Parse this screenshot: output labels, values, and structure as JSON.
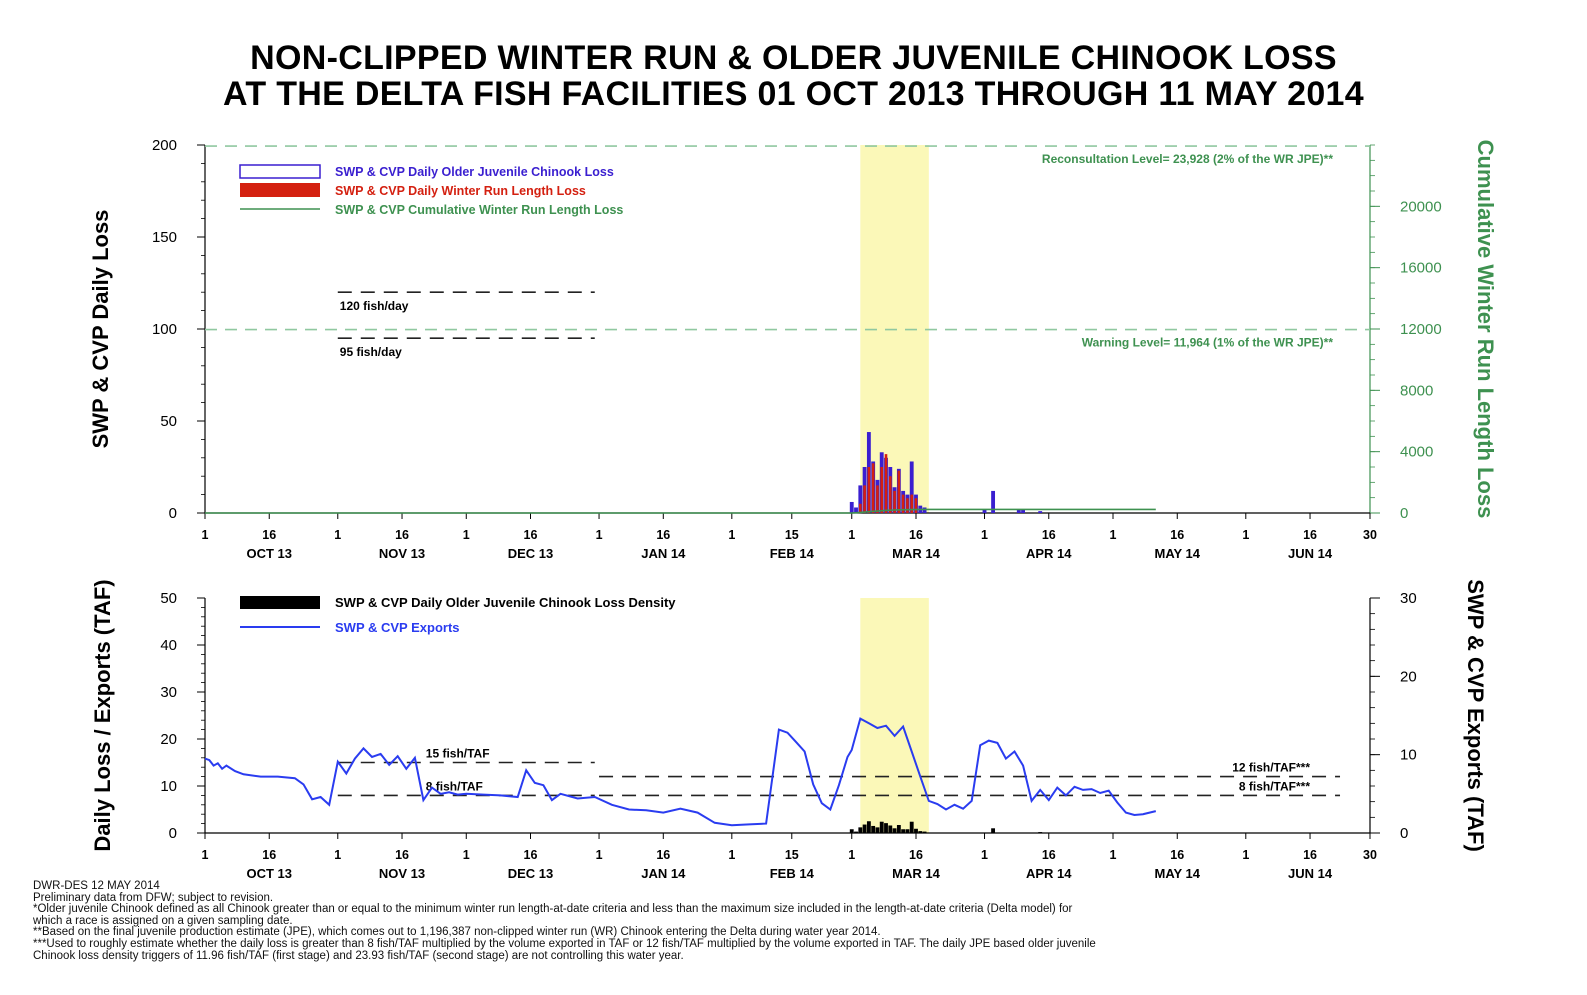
{
  "title": {
    "line1": "NON-CLIPPED WINTER RUN & OLDER JUVENILE CHINOOK LOSS",
    "line2": "AT THE DELTA FISH FACILITIES 01 OCT 2013 THROUGH 11 MAY 2014"
  },
  "colors": {
    "older_juvenile": "#3a1fd0",
    "winter_run": "#d42010",
    "cumulative": "#3e9150",
    "exports": "#2a3cf0",
    "density": "#000000",
    "highlight": "#fbf8b8",
    "reference_dash": "#90c8a0"
  },
  "x_axis": {
    "tick_labels": [
      "1",
      "16",
      "1",
      "16",
      "1",
      "16",
      "1",
      "16",
      "1",
      "15",
      "1",
      "16",
      "1",
      "16",
      "1",
      "16",
      "1",
      "16",
      "30"
    ],
    "month_labels": [
      "OCT 13",
      "NOV 13",
      "DEC 13",
      "JAN 14",
      "FEB 14",
      "MAR 14",
      "APR 14",
      "MAY 14",
      "JUN 14"
    ]
  },
  "chart_data": [
    {
      "type": "bar",
      "panel": "top",
      "xlabel": "",
      "ylabel": "SWP & CVP Daily Loss",
      "y2label": "Cumulative Winter Run Length Loss",
      "x_range": [
        "2013-10-01",
        "2014-06-30"
      ],
      "ylim": [
        0,
        200
      ],
      "y_ticks": [
        0,
        50,
        100,
        150,
        200
      ],
      "y2lim": [
        0,
        24000
      ],
      "y2_ticks": [
        0,
        4000,
        8000,
        12000,
        16000,
        20000
      ],
      "highlight_range": [
        "2014-03-03",
        "2014-03-19"
      ],
      "legend": [
        "SWP & CVP Daily Older Juvenile Chinook Loss",
        "SWP & CVP Daily Winter Run Length Loss",
        "SWP & CVP Cumulative Winter Run Length Loss"
      ],
      "legend_position": "top-left",
      "series": [
        {
          "name": "SWP & CVP Daily Older Juvenile Chinook Loss",
          "x": [
            "2014-03-01",
            "2014-03-02",
            "2014-03-03",
            "2014-03-04",
            "2014-03-05",
            "2014-03-06",
            "2014-03-07",
            "2014-03-08",
            "2014-03-09",
            "2014-03-10",
            "2014-03-11",
            "2014-03-12",
            "2014-03-13",
            "2014-03-14",
            "2014-03-15",
            "2014-03-16",
            "2014-03-17",
            "2014-03-18",
            "2014-04-01",
            "2014-04-03",
            "2014-04-09",
            "2014-04-10",
            "2014-04-14"
          ],
          "values": [
            6,
            3,
            15,
            25,
            44,
            28,
            18,
            33,
            30,
            25,
            14,
            24,
            12,
            10,
            28,
            10,
            4,
            3,
            2,
            12,
            2,
            2,
            1
          ]
        },
        {
          "name": "SWP & CVP Daily Winter Run Length Loss",
          "x": [
            "2014-03-03",
            "2014-03-04",
            "2014-03-05",
            "2014-03-06",
            "2014-03-07",
            "2014-03-08",
            "2014-03-09",
            "2014-03-10",
            "2014-03-11",
            "2014-03-12",
            "2014-03-13",
            "2014-03-14",
            "2014-03-15",
            "2014-03-16"
          ],
          "values": [
            5,
            15,
            25,
            27,
            15,
            25,
            32,
            20,
            12,
            23,
            10,
            8,
            10,
            8
          ]
        },
        {
          "name": "SWP & CVP Cumulative Winter Run Length Loss",
          "x": [
            "2013-10-01",
            "2014-03-01",
            "2014-03-03",
            "2014-03-06",
            "2014-03-09",
            "2014-03-12",
            "2014-03-15",
            "2014-03-18",
            "2014-05-11"
          ],
          "values": [
            0,
            0,
            40,
            110,
            170,
            210,
            225,
            235,
            235
          ]
        }
      ],
      "reference_lines": [
        {
          "label": "Reconsultation Level= 23,928 (2% of the WR JPE)**",
          "value": 23928,
          "axis": "right"
        },
        {
          "label": "Warning Level= 11,964 (1% of the WR JPE)**",
          "value": 11964,
          "axis": "right"
        },
        {
          "label": "120 fish/day",
          "value": 120,
          "axis": "left",
          "x_range": [
            "2013-11-01",
            "2013-12-31"
          ]
        },
        {
          "label": "95 fish/day",
          "value": 95,
          "axis": "left",
          "x_range": [
            "2013-11-01",
            "2013-12-31"
          ]
        }
      ]
    },
    {
      "type": "line",
      "panel": "bottom",
      "xlabel": "",
      "ylabel": "Daily Loss / Exports (TAF)",
      "y2label": "SWP & CVP Exports (TAF)",
      "x_range": [
        "2013-10-01",
        "2014-06-30"
      ],
      "ylim": [
        0,
        50
      ],
      "y_ticks": [
        0,
        10,
        20,
        30,
        40,
        50
      ],
      "y2lim": [
        0,
        30
      ],
      "y2_ticks": [
        0,
        10,
        20,
        30
      ],
      "highlight_range": [
        "2014-03-03",
        "2014-03-19"
      ],
      "legend": [
        "SWP & CVP Daily Older Juvenile Chinook Loss Density",
        "SWP & CVP Exports"
      ],
      "legend_position": "top-left",
      "series": [
        {
          "name": "SWP & CVP Exports",
          "axis": "right",
          "x": [
            "2013-10-01",
            "2013-10-02",
            "2013-10-03",
            "2013-10-04",
            "2013-10-05",
            "2013-10-06",
            "2013-10-08",
            "2013-10-10",
            "2013-10-14",
            "2013-10-18",
            "2013-10-22",
            "2013-10-24",
            "2013-10-26",
            "2013-10-28",
            "2013-10-30",
            "2013-11-01",
            "2013-11-03",
            "2013-11-05",
            "2013-11-07",
            "2013-11-09",
            "2013-11-11",
            "2013-11-13",
            "2013-11-15",
            "2013-11-17",
            "2013-11-19",
            "2013-11-21",
            "2013-11-23",
            "2013-11-25",
            "2013-11-27",
            "2013-11-29",
            "2013-12-01",
            "2013-12-05",
            "2013-12-09",
            "2013-12-13",
            "2013-12-15",
            "2013-12-17",
            "2013-12-19",
            "2013-12-21",
            "2013-12-23",
            "2013-12-27",
            "2013-12-31",
            "2014-01-04",
            "2014-01-08",
            "2014-01-12",
            "2014-01-16",
            "2014-01-20",
            "2014-01-24",
            "2014-01-28",
            "2014-02-01",
            "2014-02-05",
            "2014-02-09",
            "2014-02-12",
            "2014-02-14",
            "2014-02-16",
            "2014-02-18",
            "2014-02-20",
            "2014-02-22",
            "2014-02-24",
            "2014-02-26",
            "2014-02-28",
            "2014-03-01",
            "2014-03-03",
            "2014-03-05",
            "2014-03-07",
            "2014-03-09",
            "2014-03-11",
            "2014-03-13",
            "2014-03-15",
            "2014-03-17",
            "2014-03-19",
            "2014-03-21",
            "2014-03-23",
            "2014-03-25",
            "2014-03-27",
            "2014-03-29",
            "2014-03-31",
            "2014-04-02",
            "2014-04-04",
            "2014-04-06",
            "2014-04-08",
            "2014-04-10",
            "2014-04-12",
            "2014-04-14",
            "2014-04-16",
            "2014-04-18",
            "2014-04-20",
            "2014-04-22",
            "2014-04-24",
            "2014-04-26",
            "2014-04-28",
            "2014-04-30",
            "2014-05-02",
            "2014-05-04",
            "2014-05-06",
            "2014-05-08",
            "2014-05-11"
          ],
          "values": [
            9.5,
            9.3,
            8.6,
            8.9,
            8.2,
            8.6,
            7.9,
            7.5,
            7.2,
            7.2,
            7.0,
            6.2,
            4.3,
            4.6,
            3.6,
            9.1,
            7.6,
            9.5,
            10.8,
            9.7,
            10.1,
            8.7,
            9.8,
            8.2,
            9.6,
            4.2,
            5.8,
            5.0,
            5.2,
            4.9,
            5.0,
            4.9,
            4.8,
            4.6,
            8.0,
            6.4,
            6.1,
            4.2,
            5.0,
            4.4,
            4.6,
            3.6,
            3.0,
            2.9,
            2.6,
            3.1,
            2.6,
            1.3,
            1.0,
            1.1,
            1.2,
            13.2,
            12.8,
            11.6,
            10.4,
            6.2,
            3.8,
            3.0,
            6.1,
            9.7,
            10.6,
            14.6,
            14.0,
            13.4,
            13.7,
            12.4,
            13.6,
            10.4,
            7.2,
            4.1,
            3.7,
            3.0,
            3.6,
            3.1,
            4.1,
            11.2,
            11.8,
            11.5,
            9.5,
            10.4,
            8.6,
            4.1,
            5.5,
            4.2,
            5.8,
            4.8,
            5.9,
            5.5,
            5.6,
            5.1,
            5.4,
            3.9,
            2.6,
            2.3,
            2.4,
            2.8
          ]
        },
        {
          "name": "SWP & CVP Daily Older Juvenile Chinook Loss Density",
          "axis": "left",
          "x": [
            "2014-03-01",
            "2014-03-02",
            "2014-03-03",
            "2014-03-04",
            "2014-03-05",
            "2014-03-06",
            "2014-03-07",
            "2014-03-08",
            "2014-03-09",
            "2014-03-10",
            "2014-03-11",
            "2014-03-12",
            "2014-03-13",
            "2014-03-14",
            "2014-03-15",
            "2014-03-16",
            "2014-03-17",
            "2014-03-18",
            "2014-04-03",
            "2014-04-14"
          ],
          "values": [
            0.8,
            0.3,
            1.2,
            1.8,
            2.5,
            1.5,
            1.2,
            2.4,
            2.1,
            1.6,
            1.0,
            1.7,
            0.8,
            0.8,
            2.4,
            0.9,
            0.4,
            0.3,
            1.0,
            0.2
          ]
        }
      ],
      "reference_lines": [
        {
          "label": "15 fish/TAF",
          "value": 15,
          "x_range": [
            "2013-11-01",
            "2013-12-31"
          ]
        },
        {
          "label": "8 fish/TAF",
          "value": 8,
          "x_range": [
            "2013-11-01",
            "2013-12-31"
          ]
        },
        {
          "label": "12 fish/TAF***",
          "value": 12,
          "x_range": [
            "2014-01-01",
            "2014-06-23"
          ]
        },
        {
          "label": "8 fish/TAF***",
          "value": 8,
          "x_range": [
            "2014-01-01",
            "2014-06-23"
          ]
        }
      ]
    }
  ],
  "footnotes": [
    "DWR-DES 12 MAY 2014",
    "Preliminary data from DFW; subject to revision.",
    "*Older juvenile Chinook defined as all Chinook greater than or equal to the minimum winter run length-at-date criteria and less than the maximum size included in the length-at-date criteria (Delta model) for",
    "which a race is assigned on a given sampling date.",
    "**Based on the final juvenile production estimate (JPE), which comes out to 1,196,387 non-clipped winter run (WR) Chinook entering the Delta during water year 2014.",
    "***Used to roughly estimate whether the daily loss is greater than 8 fish/TAF multiplied by the volume exported in TAF or 12 fish/TAF multiplied by the volume exported in TAF. The daily JPE based older juvenile",
    "Chinook loss density triggers of 11.96 fish/TAF (first stage) and 23.93 fish/TAF (second stage) are not controlling this water year."
  ]
}
